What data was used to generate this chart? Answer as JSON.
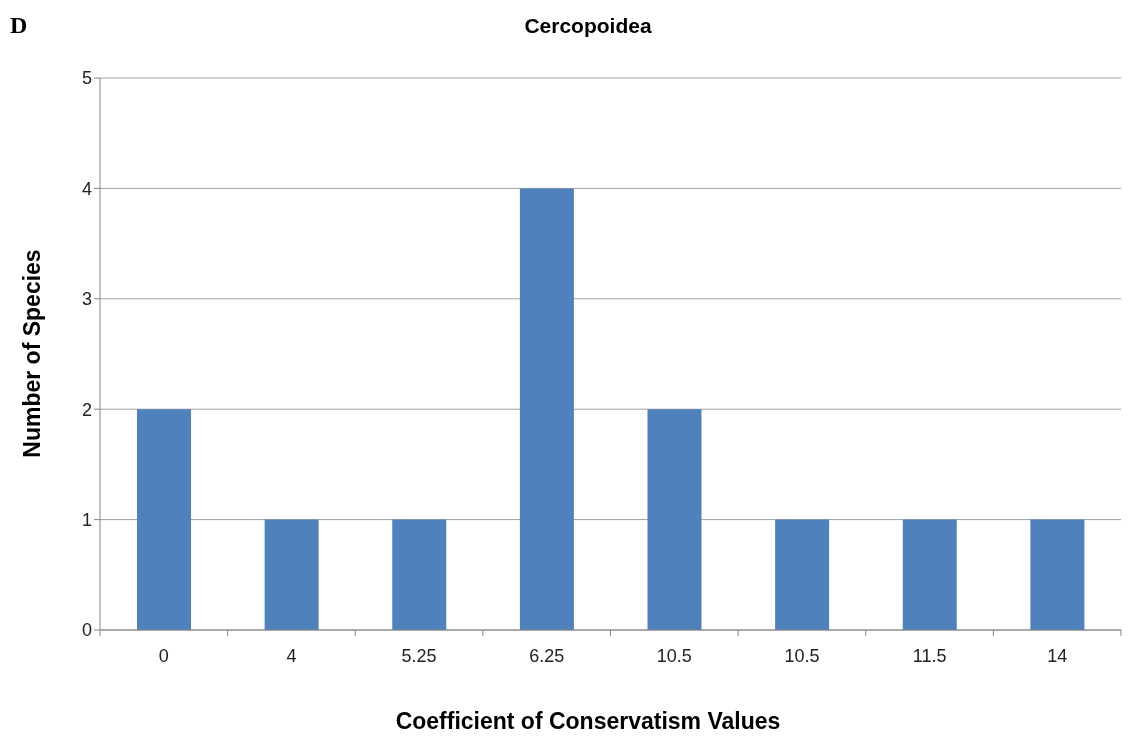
{
  "chart_data": {
    "type": "bar",
    "title": "Cercopoidea",
    "xlabel": "Coefficient of Conservatism Values",
    "ylabel": "Number of Species",
    "annotations": [
      "D"
    ],
    "categories": [
      "0",
      "4",
      "5.25",
      "6.25",
      "10.5",
      "10.5",
      "11.5",
      "14"
    ],
    "values": [
      2,
      1,
      1,
      4,
      2,
      1,
      1,
      1
    ],
    "color": "#4f81bd",
    "ylim": [
      0,
      5
    ],
    "yticks": [
      0,
      1,
      2,
      3,
      4,
      5
    ],
    "grid": "y"
  }
}
